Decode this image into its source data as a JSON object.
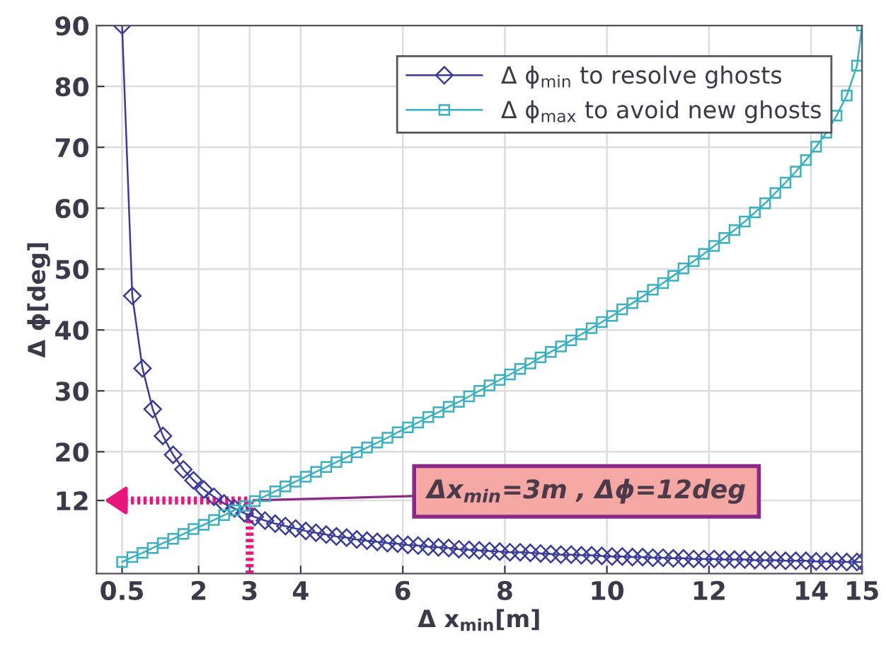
{
  "chart_data": {
    "type": "line",
    "xlabel": "Δ x$_{min}$[m]",
    "ylabel": "Δ ϕ[deg]",
    "xlim": [
      0,
      15
    ],
    "xticks": [
      0.5,
      2,
      3,
      4,
      6,
      8,
      10,
      12,
      14,
      15
    ],
    "ylim": [
      0,
      90
    ],
    "yticks": [
      12,
      20,
      30,
      40,
      50,
      60,
      70,
      80,
      90
    ],
    "grid": true,
    "legend": "top right",
    "x": [
      0.5,
      0.7,
      0.9,
      1.1,
      1.3,
      1.5,
      1.7,
      1.9,
      2.1,
      2.3,
      2.5,
      2.7,
      2.9,
      3.1,
      3.3,
      3.5,
      3.7,
      3.9,
      4.1,
      4.3,
      4.5,
      4.7,
      4.9,
      5.1,
      5.3,
      5.5,
      5.7,
      5.9,
      6.1,
      6.3,
      6.5,
      6.7,
      6.9,
      7.1,
      7.3,
      7.5,
      7.7,
      7.9,
      8.1,
      8.3,
      8.5,
      8.7,
      8.9,
      9.1,
      9.3,
      9.5,
      9.7,
      9.9,
      10.1,
      10.3,
      10.5,
      10.7,
      10.9,
      11.1,
      11.3,
      11.5,
      11.7,
      11.9,
      12.1,
      12.3,
      12.5,
      12.7,
      12.9,
      13.1,
      13.3,
      13.5,
      13.7,
      13.9,
      14.1,
      14.3,
      14.5,
      14.7,
      14.9,
      15.0
    ],
    "series": [
      {
        "name": "Δ ϕ$_{min}$ to resolve ghosts",
        "color": "#3b3b9a",
        "marker": "diamond",
        "values": [
          90,
          45.6,
          33.7,
          27.0,
          22.6,
          19.5,
          17.1,
          15.3,
          13.8,
          12.6,
          11.5,
          10.7,
          9.9,
          9.3,
          8.7,
          8.2,
          7.8,
          7.4,
          7.0,
          6.7,
          6.4,
          6.1,
          5.9,
          5.6,
          5.4,
          5.2,
          5.0,
          4.9,
          4.7,
          4.6,
          4.4,
          4.3,
          4.2,
          4.0,
          3.9,
          3.8,
          3.7,
          3.6,
          3.5,
          3.5,
          3.4,
          3.3,
          3.2,
          3.1,
          3.1,
          3.0,
          3.0,
          2.9,
          2.8,
          2.8,
          2.7,
          2.7,
          2.6,
          2.6,
          2.5,
          2.5,
          2.4,
          2.4,
          2.4,
          2.3,
          2.3,
          2.3,
          2.2,
          2.2,
          2.2,
          2.1,
          2.1,
          2.1,
          2.0,
          2.0,
          2.0,
          1.9,
          1.9,
          1.9
        ]
      },
      {
        "name": "Δ ϕ$_{max}$ to avoid new ghosts",
        "color": "#3ab0c0",
        "marker": "square",
        "values": [
          1.9,
          2.7,
          3.4,
          4.2,
          5.0,
          5.7,
          6.5,
          7.3,
          8.0,
          8.8,
          9.6,
          10.4,
          11.1,
          11.9,
          12.7,
          13.5,
          14.3,
          15.1,
          15.9,
          16.7,
          17.5,
          18.3,
          19.1,
          19.9,
          20.7,
          21.5,
          22.3,
          23.2,
          24.0,
          24.8,
          25.7,
          26.5,
          27.4,
          28.2,
          29.1,
          30.0,
          30.9,
          31.8,
          32.7,
          33.6,
          34.5,
          35.5,
          36.4,
          37.3,
          38.3,
          39.3,
          40.3,
          41.3,
          42.3,
          43.4,
          44.4,
          45.5,
          46.6,
          47.7,
          48.9,
          50.1,
          51.3,
          52.5,
          53.8,
          55.1,
          56.4,
          57.8,
          59.3,
          60.8,
          62.5,
          64.2,
          66.0,
          67.9,
          70.1,
          72.4,
          75.2,
          78.5,
          83.4,
          90
        ]
      }
    ],
    "annotations": [
      {
        "text": "Δx$_{min}$=3m , Δϕ=12deg",
        "x": 3,
        "y": 12
      }
    ]
  }
}
